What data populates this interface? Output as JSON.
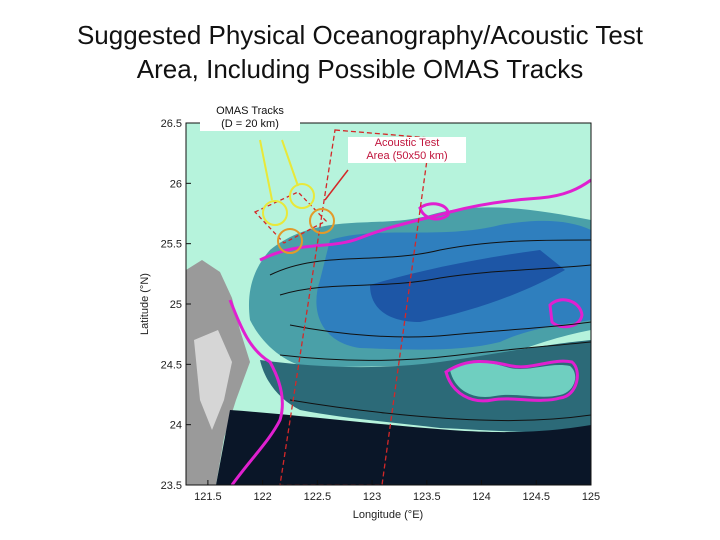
{
  "title": {
    "line1": "Suggested Physical Oceanography/Acoustic Test",
    "line2": "Area, Including Possible OMAS Tracks"
  },
  "map": {
    "x_label": "Longitude (°E)",
    "y_label": "Latitude (°N)",
    "x_ticks": [
      "121.5",
      "122",
      "122.5",
      "123",
      "123.5",
      "124",
      "124.5",
      "125"
    ],
    "y_ticks": [
      "26.5",
      "26",
      "25.5",
      "25",
      "24.5",
      "24",
      "23.5"
    ],
    "lon_range": [
      121.3,
      125.0
    ],
    "lat_range": [
      23.5,
      26.5
    ],
    "colors": {
      "shelf": "#b6f3dc",
      "land": "#9a9a9a",
      "deep": "#1d56a6",
      "abyss": "#0a1628",
      "contour_magenta": "#e020d0",
      "box_red": "#d42828",
      "omas_yellow": "#e8e83a",
      "omas_orange": "#e29a2a"
    }
  },
  "annotations": {
    "omas_line1": "OMAS Tracks",
    "omas_line2": "(D = 20 km)",
    "acoustic_line1": "Acoustic Test",
    "acoustic_line2": "Area (50x50 km)"
  }
}
